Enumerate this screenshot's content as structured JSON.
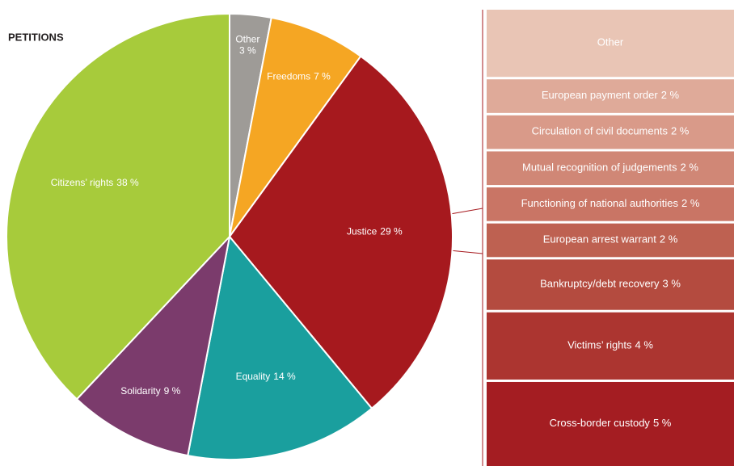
{
  "chart_data": [
    {
      "type": "pie",
      "title": "PETITIONS",
      "categories": [
        "Other",
        "Freedoms",
        "Justice",
        "Equality",
        "Solidarity",
        "Citizens’ rights"
      ],
      "values": [
        3,
        7,
        29,
        14,
        9,
        38
      ],
      "value_labels": [
        "3 %",
        "7 %",
        "29 %",
        "14 %",
        "9 %",
        "38 %"
      ],
      "colors": [
        "#9e9b97",
        "#f5a623",
        "#a6191e",
        "#1a9f9e",
        "#7b3b6c",
        "#a7cb3b"
      ]
    },
    {
      "type": "bar",
      "categories": [
        "Other",
        "European payment order",
        "Circulation of civil documents",
        "Mutual recognition of judgements",
        "Functioning of national authorities",
        "European arrest warrant",
        "Bankruptcy/debt recovery",
        "Victims’ rights",
        "Cross-border custody"
      ],
      "values": [
        4,
        2,
        2,
        2,
        2,
        2,
        3,
        4,
        5
      ],
      "value_labels": [
        null,
        "2 %",
        "2 %",
        "2 %",
        "2 %",
        "2 %",
        "3 %",
        "4 %",
        "5 %"
      ],
      "colors": [
        "#e9c5b5",
        "#dfaa99",
        "#d99a89",
        "#d08776",
        "#c97565",
        "#be6151",
        "#b44b3f",
        "#ac3530",
        "#a41d22"
      ]
    }
  ]
}
